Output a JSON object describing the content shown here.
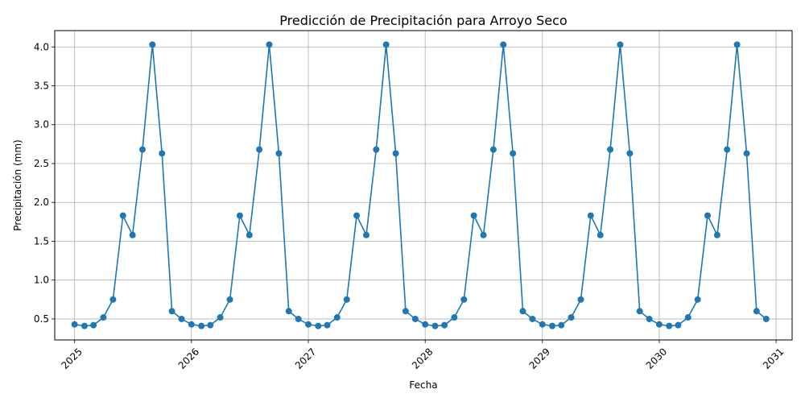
{
  "chart_data": {
    "type": "line",
    "title": "Predicción de Precipitación para Arroyo Seco",
    "xlabel": "Fecha",
    "ylabel": "Precipitación (mm)",
    "color": "#1f77b4",
    "grid": true,
    "xlim": [
      "2024-10-31",
      "2031-02-20"
    ],
    "ylim": [
      0.23,
      4.21
    ],
    "x_ticks": [
      "2025",
      "2026",
      "2027",
      "2028",
      "2029",
      "2030",
      "2031"
    ],
    "y_ticks": [
      "0.5",
      "1.0",
      "1.5",
      "2.0",
      "2.5",
      "3.0",
      "3.5",
      "4.0"
    ],
    "monthly_pattern": [
      0.43,
      0.41,
      0.42,
      0.52,
      0.75,
      1.83,
      1.58,
      2.68,
      4.03,
      2.63,
      0.6,
      0.5
    ],
    "series": [
      {
        "x": [
          "2025-01-01",
          "2025-02-01",
          "2025-03-01",
          "2025-04-01",
          "2025-05-01",
          "2025-06-01",
          "2025-07-01",
          "2025-08-01",
          "2025-09-01",
          "2025-10-01",
          "2025-11-01",
          "2025-12-01",
          "2026-01-01",
          "2026-02-01",
          "2026-03-01",
          "2026-04-01",
          "2026-05-01",
          "2026-06-01",
          "2026-07-01",
          "2026-08-01",
          "2026-09-01",
          "2026-10-01",
          "2026-11-01",
          "2026-12-01",
          "2027-01-01",
          "2027-02-01",
          "2027-03-01",
          "2027-04-01",
          "2027-05-01",
          "2027-06-01",
          "2027-07-01",
          "2027-08-01",
          "2027-09-01",
          "2027-10-01",
          "2027-11-01",
          "2027-12-01",
          "2028-01-01",
          "2028-02-01",
          "2028-03-01",
          "2028-04-01",
          "2028-05-01",
          "2028-06-01",
          "2028-07-01",
          "2028-08-01",
          "2028-09-01",
          "2028-10-01",
          "2028-11-01",
          "2028-12-01",
          "2029-01-01",
          "2029-02-01",
          "2029-03-01",
          "2029-04-01",
          "2029-05-01",
          "2029-06-01",
          "2029-07-01",
          "2029-08-01",
          "2029-09-01",
          "2029-10-01",
          "2029-11-01",
          "2029-12-01",
          "2030-01-01",
          "2030-02-01",
          "2030-03-01",
          "2030-04-01",
          "2030-05-01",
          "2030-06-01",
          "2030-07-01",
          "2030-08-01",
          "2030-09-01",
          "2030-10-01",
          "2030-11-01",
          "2030-12-01"
        ],
        "y": [
          0.43,
          0.41,
          0.42,
          0.52,
          0.75,
          1.83,
          1.58,
          2.68,
          4.03,
          2.63,
          0.6,
          0.5,
          0.43,
          0.41,
          0.42,
          0.52,
          0.75,
          1.83,
          1.58,
          2.68,
          4.03,
          2.63,
          0.6,
          0.5,
          0.43,
          0.41,
          0.42,
          0.52,
          0.75,
          1.83,
          1.58,
          2.68,
          4.03,
          2.63,
          0.6,
          0.5,
          0.43,
          0.41,
          0.42,
          0.52,
          0.75,
          1.83,
          1.58,
          2.68,
          4.03,
          2.63,
          0.6,
          0.5,
          0.43,
          0.41,
          0.42,
          0.52,
          0.75,
          1.83,
          1.58,
          2.68,
          4.03,
          2.63,
          0.6,
          0.5,
          0.43,
          0.41,
          0.42,
          0.52,
          0.75,
          1.83,
          1.58,
          2.68,
          4.03,
          2.63,
          0.6,
          0.5
        ]
      }
    ]
  }
}
